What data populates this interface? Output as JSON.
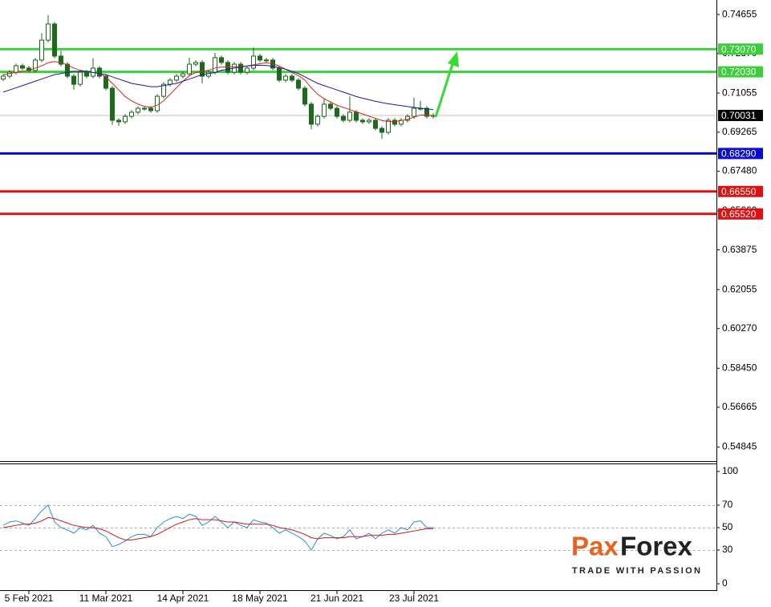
{
  "chart_data": [
    {
      "type": "candlestick",
      "ylim": [
        0.542,
        0.7532
      ],
      "yticks": [
        0.74655,
        {
          "value": 0.7287,
          "label": "0.72870"
        },
        0.71055,
        0.69265,
        {
          "value": 0.6748,
          "label": "0.67480"
        },
        {
          "value": 0.6566,
          "label": "0.65660"
        },
        0.63875,
        0.62055,
        {
          "value": 0.6027,
          "label": "0.60270"
        },
        {
          "value": 0.5845,
          "label": "0.58450"
        },
        0.56665,
        0.54845
      ],
      "candle_color": "#1a6b1a",
      "open": [
        0.717,
        0.7183,
        0.7201,
        0.7231,
        0.722,
        0.7209,
        0.7257,
        0.7348,
        0.7422,
        0.7275,
        0.7238,
        0.7183,
        0.7146,
        0.7201,
        0.7183,
        0.722,
        0.7183,
        0.7128,
        0.6981,
        0.6974,
        0.6999,
        0.7018,
        0.7036,
        0.7036,
        0.7025,
        0.7091,
        0.7146,
        0.7165,
        0.7183,
        0.7194,
        0.7238,
        0.7246,
        0.7183,
        0.7201,
        0.7268,
        0.7246,
        0.7201,
        0.7238,
        0.7201,
        0.722,
        0.7275,
        0.7257,
        0.7257,
        0.722,
        0.7165,
        0.7183,
        0.7165,
        0.7128,
        0.7055,
        0.6963,
        0.6999,
        0.7055,
        0.7036,
        0.6999,
        0.6981,
        0.7018,
        0.6981,
        0.6974,
        0.6981,
        0.6944,
        0.6926,
        0.6981,
        0.6963,
        0.6981,
        0.6999,
        0.7036,
        0.7036,
        0.6999
      ],
      "high": [
        0.7193,
        0.7211,
        0.7241,
        0.7241,
        0.723,
        0.7267,
        0.738,
        0.7462,
        0.7432,
        0.73,
        0.7248,
        0.7193,
        0.7211,
        0.7211,
        0.7265,
        0.723,
        0.7193,
        0.7138,
        0.6991,
        0.7009,
        0.7028,
        0.7046,
        0.7046,
        0.7046,
        0.7101,
        0.7156,
        0.7175,
        0.7193,
        0.7204,
        0.7268,
        0.7256,
        0.7256,
        0.7211,
        0.729,
        0.7278,
        0.7256,
        0.7248,
        0.7248,
        0.723,
        0.7315,
        0.7285,
        0.7267,
        0.7267,
        0.723,
        0.7193,
        0.7193,
        0.7175,
        0.7138,
        0.7065,
        0.7009,
        0.708,
        0.7065,
        0.7046,
        0.7009,
        0.709,
        0.7028,
        0.6991,
        0.6991,
        0.6991,
        0.6954,
        0.6991,
        0.6991,
        0.6991,
        0.7009,
        0.7085,
        0.707,
        0.7046,
        0.7013
      ],
      "low": [
        0.716,
        0.7173,
        0.7191,
        0.721,
        0.7199,
        0.7199,
        0.7247,
        0.7338,
        0.7265,
        0.7228,
        0.7173,
        0.712,
        0.7136,
        0.7173,
        0.7173,
        0.7173,
        0.7118,
        0.696,
        0.6955,
        0.6964,
        0.6989,
        0.7008,
        0.7026,
        0.7015,
        0.7015,
        0.7081,
        0.7136,
        0.7155,
        0.7173,
        0.7184,
        0.7228,
        0.715,
        0.7173,
        0.7191,
        0.7236,
        0.7191,
        0.7191,
        0.7191,
        0.7191,
        0.721,
        0.7247,
        0.7247,
        0.721,
        0.7155,
        0.7155,
        0.7155,
        0.7118,
        0.7045,
        0.694,
        0.6953,
        0.6989,
        0.7026,
        0.6989,
        0.6971,
        0.6971,
        0.6971,
        0.6964,
        0.6964,
        0.6934,
        0.6896,
        0.6916,
        0.6953,
        0.6953,
        0.6971,
        0.6989,
        0.7026,
        0.6989,
        0.6989
      ],
      "close": [
        0.7183,
        0.7201,
        0.7231,
        0.722,
        0.7209,
        0.7257,
        0.7348,
        0.7422,
        0.7275,
        0.7238,
        0.7183,
        0.7146,
        0.7201,
        0.7183,
        0.722,
        0.7183,
        0.7128,
        0.6981,
        0.6974,
        0.6999,
        0.7018,
        0.7036,
        0.7036,
        0.7025,
        0.7091,
        0.7146,
        0.7165,
        0.7183,
        0.7194,
        0.7238,
        0.7246,
        0.7183,
        0.7201,
        0.7268,
        0.7246,
        0.7201,
        0.7238,
        0.7201,
        0.722,
        0.7275,
        0.7257,
        0.7257,
        0.722,
        0.7165,
        0.7183,
        0.7165,
        0.7128,
        0.7055,
        0.6963,
        0.6999,
        0.7055,
        0.7036,
        0.6999,
        0.6981,
        0.7018,
        0.6981,
        0.6974,
        0.6981,
        0.6944,
        0.6926,
        0.6981,
        0.6963,
        0.6981,
        0.6999,
        0.7036,
        0.7036,
        0.6999,
        0.7003
      ],
      "series": [
        {
          "color": "#e02020",
          "values": [
            0.719,
            0.7195,
            0.72,
            0.7205,
            0.721,
            0.722,
            0.723,
            0.7245,
            0.725,
            0.7245,
            0.7235,
            0.722,
            0.721,
            0.7205,
            0.72,
            0.7195,
            0.718,
            0.715,
            0.712,
            0.709,
            0.707,
            0.7055,
            0.7045,
            0.704,
            0.705,
            0.707,
            0.71,
            0.713,
            0.716,
            0.7185,
            0.72,
            0.7205,
            0.721,
            0.722,
            0.7225,
            0.7225,
            0.7225,
            0.7228,
            0.723,
            0.7235,
            0.724,
            0.7245,
            0.724,
            0.723,
            0.7215,
            0.72,
            0.7185,
            0.7165,
            0.713,
            0.71,
            0.708,
            0.7065,
            0.705,
            0.704,
            0.703,
            0.702,
            0.701,
            0.7,
            0.699,
            0.698,
            0.6975,
            0.6975,
            0.698,
            0.6985,
            0.6995,
            0.7005,
            0.7005,
            0.7003
          ]
        },
        {
          "color": "#1a1aa8",
          "values": [
            0.711,
            0.712,
            0.713,
            0.714,
            0.715,
            0.716,
            0.717,
            0.718,
            0.719,
            0.7195,
            0.72,
            0.7205,
            0.7205,
            0.7205,
            0.72,
            0.7195,
            0.719,
            0.718,
            0.717,
            0.716,
            0.715,
            0.7145,
            0.714,
            0.7135,
            0.7135,
            0.714,
            0.7145,
            0.715,
            0.716,
            0.717,
            0.718,
            0.719,
            0.7195,
            0.72,
            0.721,
            0.7215,
            0.722,
            0.7225,
            0.723,
            0.7232,
            0.7233,
            0.7232,
            0.7228,
            0.7222,
            0.7215,
            0.7205,
            0.7195,
            0.718,
            0.7165,
            0.715,
            0.714,
            0.713,
            0.712,
            0.711,
            0.71,
            0.709,
            0.7082,
            0.7075,
            0.7068,
            0.7062,
            0.7057,
            0.7052,
            0.7048,
            0.7044,
            0.704,
            0.7036,
            0.7033,
            0.703
          ]
        }
      ],
      "levels": [
        {
          "value": 0.7307,
          "label": "0.73070",
          "color": "#3ccf3c"
        },
        {
          "value": 0.7203,
          "label": "0.72030",
          "color": "#3ccf3c"
        },
        {
          "value": 0.6829,
          "label": "0.68290",
          "color": "#0a0ad8"
        },
        {
          "value": 0.6655,
          "label": "0.66550",
          "color": "#e01010"
        },
        {
          "value": 0.6552,
          "label": "0.65520",
          "color": "#e01010"
        }
      ],
      "last_price": {
        "value": 0.70031,
        "label": "0.70031",
        "color": "#000000",
        "line_color": "#c0c0c0"
      }
    },
    {
      "type": "line",
      "categories": [
        null,
        null,
        null,
        null,
        "5 Feb 2021",
        null,
        null,
        null,
        null,
        null,
        null,
        null,
        null,
        null,
        null,
        null,
        "11 Mar 2021",
        null,
        null,
        null,
        null,
        null,
        null,
        null,
        null,
        null,
        null,
        null,
        "14 Apr 2021",
        null,
        null,
        null,
        null,
        null,
        null,
        null,
        null,
        null,
        null,
        null,
        "18 May 2021",
        null,
        null,
        null,
        null,
        null,
        null,
        null,
        null,
        null,
        null,
        null,
        "21 Jun 2021",
        null,
        null,
        null,
        null,
        null,
        null,
        null,
        null,
        null,
        null,
        null,
        "23 Jul 2021",
        null,
        null,
        null
      ],
      "ylim": [
        -6.4,
        107.1
      ],
      "yticks": [
        100,
        70,
        50,
        30,
        0
      ],
      "series": [
        {
          "color": "#2a8fd6",
          "values": [
            52,
            55,
            56,
            54,
            52,
            58,
            65,
            70,
            55,
            50,
            48,
            45,
            50,
            48,
            52,
            45,
            42,
            33,
            35,
            38,
            42,
            44,
            44,
            42,
            50,
            55,
            58,
            60,
            58,
            62,
            60,
            52,
            55,
            60,
            55,
            50,
            55,
            52,
            50,
            57,
            55,
            54,
            50,
            45,
            48,
            45,
            42,
            38,
            30,
            40,
            45,
            43,
            40,
            42,
            48,
            40,
            42,
            45,
            40,
            45,
            48,
            45,
            50,
            48,
            55,
            56,
            50,
            50
          ]
        },
        {
          "color": "#d01818",
          "values": [
            50,
            51,
            52,
            53,
            53,
            54,
            56,
            59,
            58,
            56,
            54,
            52,
            51,
            50,
            50,
            49,
            47,
            44,
            41,
            39,
            39,
            40,
            41,
            42,
            44,
            47,
            50,
            53,
            55,
            57,
            58,
            57,
            57,
            57,
            56,
            55,
            55,
            54,
            53,
            53,
            53,
            53,
            52,
            50,
            49,
            48,
            46,
            44,
            41,
            40,
            41,
            41,
            41,
            41,
            42,
            42,
            42,
            43,
            43,
            43,
            44,
            44,
            45,
            46,
            47,
            48,
            49,
            49
          ]
        }
      ]
    }
  ],
  "branding": {
    "logo_first": "Pax",
    "logo_second": "Forex",
    "tagline": "TRADE WITH PASSION"
  }
}
